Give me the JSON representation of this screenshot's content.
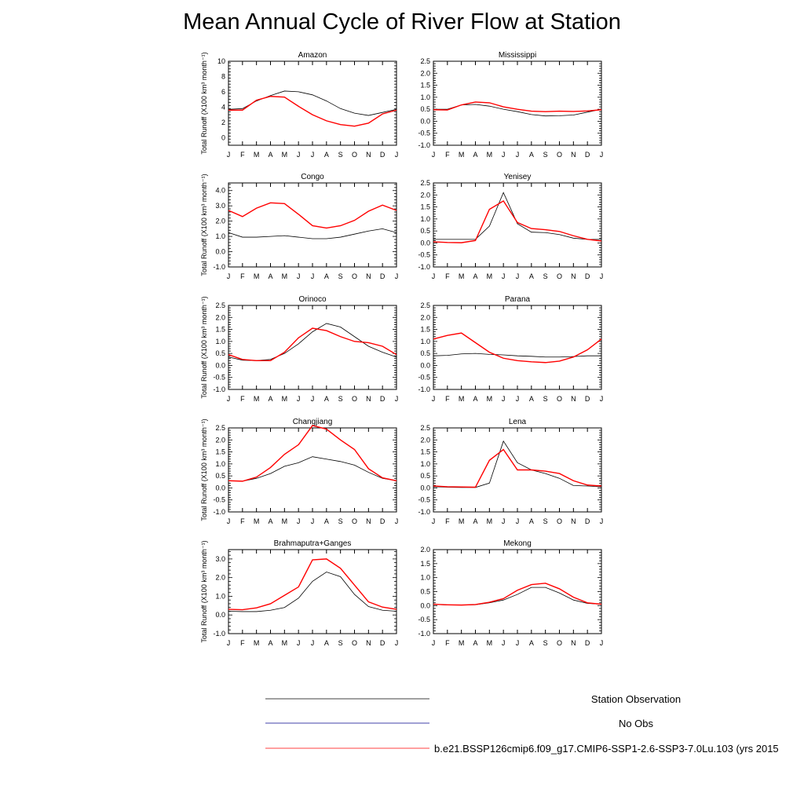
{
  "title": "Mean Annual Cycle of River Flow at Station",
  "ylabel": "Total Runoff (X100 km³ month⁻¹)",
  "months": [
    "J",
    "F",
    "M",
    "A",
    "M",
    "J",
    "J",
    "A",
    "S",
    "O",
    "N",
    "D",
    "J"
  ],
  "colors": {
    "obs": "#000000",
    "noobs": "#00008b",
    "model": "#ff0000"
  },
  "legend": [
    {
      "label": "Station Observation",
      "color": "#000000"
    },
    {
      "label": "No Obs",
      "color": "#00008b"
    },
    {
      "label": "b.e21.BSSP126cmip6.f09_g17.CMIP6-SSP1-2.6-SSP3-7.0Lu.103 (yrs 2015",
      "color": "#ff0000"
    }
  ],
  "chart_data": [
    {
      "type": "line",
      "title": "Amazon",
      "ylim": [
        -1,
        10
      ],
      "yticks": [
        "0",
        "2",
        "4",
        "6",
        "8",
        "10"
      ],
      "series": [
        {
          "name": "Station Observation",
          "values": [
            3.7,
            3.8,
            4.8,
            5.5,
            6.1,
            6.0,
            5.6,
            4.8,
            3.8,
            3.2,
            2.9,
            3.3,
            3.7
          ]
        },
        {
          "name": "b.e21.BSSP126cmip6.f09_g17.CMIP6-SSP1-2.6-SSP3-7.0Lu.103",
          "values": [
            3.6,
            3.6,
            4.9,
            5.4,
            5.3,
            4.1,
            3.0,
            2.2,
            1.7,
            1.5,
            1.9,
            3.1,
            3.6
          ]
        }
      ]
    },
    {
      "type": "line",
      "title": "Mississippi",
      "ylim": [
        -1,
        2.5
      ],
      "yticks": [
        "-1.0",
        "-0.5",
        "0.0",
        "0.5",
        "1.0",
        "1.5",
        "2.0",
        "2.5"
      ],
      "series": [
        {
          "name": "Station Observation",
          "values": [
            0.5,
            0.5,
            0.68,
            0.7,
            0.63,
            0.5,
            0.4,
            0.28,
            0.22,
            0.23,
            0.26,
            0.38,
            0.5
          ]
        },
        {
          "name": "b.e21.BSSP126cmip6.f09_g17.CMIP6-SSP1-2.6-SSP3-7.0Lu.103",
          "values": [
            0.48,
            0.47,
            0.68,
            0.8,
            0.77,
            0.6,
            0.5,
            0.42,
            0.4,
            0.42,
            0.41,
            0.43,
            0.48
          ]
        }
      ]
    },
    {
      "type": "line",
      "title": "Congo",
      "ylim": [
        -1,
        4.5
      ],
      "yticks": [
        "-1.0",
        "0.0",
        "1.0",
        "2.0",
        "3.0",
        "4.0"
      ],
      "series": [
        {
          "name": "Station Observation",
          "values": [
            1.25,
            0.95,
            0.95,
            1.0,
            1.05,
            0.95,
            0.85,
            0.85,
            0.95,
            1.15,
            1.35,
            1.5,
            1.25
          ]
        },
        {
          "name": "b.e21.BSSP126cmip6.f09_g17.CMIP6-SSP1-2.6-SSP3-7.0Lu.103",
          "values": [
            2.7,
            2.3,
            2.85,
            3.2,
            3.15,
            2.45,
            1.7,
            1.55,
            1.7,
            2.05,
            2.65,
            3.05,
            2.7
          ]
        }
      ]
    },
    {
      "type": "line",
      "title": "Yenisey",
      "ylim": [
        -1,
        2.5
      ],
      "yticks": [
        "-1.0",
        "-0.5",
        "0.0",
        "0.5",
        "1.0",
        "1.5",
        "2.0",
        "2.5"
      ],
      "series": [
        {
          "name": "Station Observation",
          "values": [
            0.15,
            0.15,
            0.15,
            0.15,
            0.7,
            2.1,
            0.8,
            0.45,
            0.43,
            0.35,
            0.2,
            0.15,
            0.15
          ]
        },
        {
          "name": "b.e21.BSSP126cmip6.f09_g17.CMIP6-SSP1-2.6-SSP3-7.0Lu.103",
          "values": [
            0.05,
            0.02,
            0.01,
            0.1,
            1.4,
            1.75,
            0.85,
            0.6,
            0.55,
            0.48,
            0.3,
            0.15,
            0.08
          ]
        }
      ]
    },
    {
      "type": "line",
      "title": "Orinoco",
      "ylim": [
        -1,
        2.5
      ],
      "yticks": [
        "-1.0",
        "-0.5",
        "0.0",
        "0.5",
        "1.0",
        "1.5",
        "2.0",
        "2.5"
      ],
      "series": [
        {
          "name": "Station Observation",
          "values": [
            0.35,
            0.22,
            0.2,
            0.25,
            0.5,
            0.9,
            1.4,
            1.75,
            1.6,
            1.2,
            0.8,
            0.55,
            0.35
          ]
        },
        {
          "name": "b.e21.BSSP126cmip6.f09_g17.CMIP6-SSP1-2.6-SSP3-7.0Lu.103",
          "values": [
            0.45,
            0.25,
            0.2,
            0.2,
            0.55,
            1.15,
            1.55,
            1.45,
            1.2,
            1.0,
            0.95,
            0.8,
            0.45
          ]
        }
      ]
    },
    {
      "type": "line",
      "title": "Parana",
      "ylim": [
        -1,
        2.5
      ],
      "yticks": [
        "-1.0",
        "-0.5",
        "0.0",
        "0.5",
        "1.0",
        "1.5",
        "2.0",
        "2.5"
      ],
      "series": [
        {
          "name": "Station Observation",
          "values": [
            0.4,
            0.42,
            0.48,
            0.5,
            0.46,
            0.44,
            0.4,
            0.38,
            0.35,
            0.35,
            0.37,
            0.4,
            0.4
          ]
        },
        {
          "name": "b.e21.BSSP126cmip6.f09_g17.CMIP6-SSP1-2.6-SSP3-7.0Lu.103",
          "values": [
            1.1,
            1.25,
            1.35,
            0.95,
            0.55,
            0.3,
            0.2,
            0.15,
            0.12,
            0.18,
            0.35,
            0.65,
            1.1
          ]
        }
      ]
    },
    {
      "type": "line",
      "title": "Changjiang",
      "ylim": [
        -1,
        2.5
      ],
      "yticks": [
        "-1.0",
        "-0.5",
        "0.0",
        "0.5",
        "1.0",
        "1.5",
        "2.0",
        "2.5"
      ],
      "series": [
        {
          "name": "Station Observation",
          "values": [
            0.3,
            0.28,
            0.4,
            0.6,
            0.9,
            1.05,
            1.3,
            1.2,
            1.1,
            0.95,
            0.65,
            0.4,
            0.3
          ]
        },
        {
          "name": "b.e21.BSSP126cmip6.f09_g17.CMIP6-SSP1-2.6-SSP3-7.0Lu.103",
          "values": [
            0.3,
            0.28,
            0.45,
            0.85,
            1.4,
            1.8,
            2.6,
            2.45,
            2.0,
            1.6,
            0.8,
            0.42,
            0.3
          ]
        }
      ]
    },
    {
      "type": "line",
      "title": "Lena",
      "ylim": [
        -1,
        2.5
      ],
      "yticks": [
        "-1.0",
        "-0.5",
        "0.0",
        "0.5",
        "1.0",
        "1.5",
        "2.0",
        "2.5"
      ],
      "series": [
        {
          "name": "Station Observation",
          "values": [
            0.05,
            0.03,
            0.02,
            0.02,
            0.2,
            1.95,
            1.05,
            0.75,
            0.6,
            0.4,
            0.1,
            0.08,
            0.05
          ]
        },
        {
          "name": "b.e21.BSSP126cmip6.f09_g17.CMIP6-SSP1-2.6-SSP3-7.0Lu.103",
          "values": [
            0.08,
            0.05,
            0.04,
            0.03,
            1.15,
            1.6,
            0.75,
            0.75,
            0.7,
            0.6,
            0.3,
            0.12,
            0.08
          ]
        }
      ]
    },
    {
      "type": "line",
      "title": "Brahmaputra+Ganges",
      "ylim": [
        -1,
        3.5
      ],
      "yticks": [
        "-1.0",
        "0.0",
        "1.0",
        "2.0",
        "3.0"
      ],
      "series": [
        {
          "name": "Station Observation",
          "values": [
            0.2,
            0.18,
            0.18,
            0.25,
            0.4,
            0.9,
            1.8,
            2.3,
            2.05,
            1.1,
            0.45,
            0.25,
            0.2
          ]
        },
        {
          "name": "b.e21.BSSP126cmip6.f09_g17.CMIP6-SSP1-2.6-SSP3-7.0Lu.103",
          "values": [
            0.3,
            0.28,
            0.38,
            0.6,
            1.05,
            1.5,
            2.95,
            3.0,
            2.5,
            1.6,
            0.7,
            0.42,
            0.3
          ]
        }
      ]
    },
    {
      "type": "line",
      "title": "Mekong",
      "ylim": [
        -1,
        2
      ],
      "yticks": [
        "-1.0",
        "-0.5",
        "0.0",
        "0.5",
        "1.0",
        "1.5",
        "2.0"
      ],
      "series": [
        {
          "name": "Station Observation",
          "values": [
            0.05,
            0.02,
            0.02,
            0.03,
            0.1,
            0.2,
            0.4,
            0.65,
            0.65,
            0.45,
            0.2,
            0.08,
            0.05
          ]
        },
        {
          "name": "b.e21.BSSP126cmip6.f09_g17.CMIP6-SSP1-2.6-SSP3-7.0Lu.103",
          "values": [
            0.05,
            0.03,
            0.02,
            0.04,
            0.12,
            0.25,
            0.55,
            0.75,
            0.8,
            0.6,
            0.3,
            0.1,
            0.05
          ]
        }
      ]
    }
  ]
}
